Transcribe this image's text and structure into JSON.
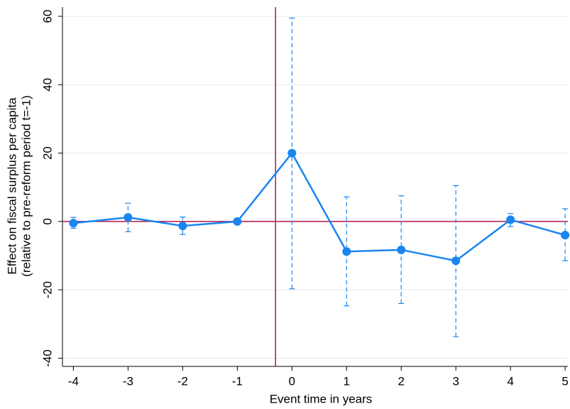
{
  "chart_data": {
    "type": "event-study",
    "y_label": [
      "Effect on fiscal surplus per capita",
      "(relative to pre-reform period t=-1)"
    ],
    "x_label": "Event time in years",
    "x": [
      -4,
      -3,
      -2,
      -1,
      0,
      1,
      2,
      3,
      4,
      5
    ],
    "values": [
      -0.5,
      1.2,
      -1.3,
      0,
      20,
      -8.8,
      -8.3,
      -11.5,
      0.5,
      -4
    ],
    "ci_lower": [
      -2,
      -3,
      -3.8,
      null,
      -19.7,
      -24.7,
      -24,
      -33.7,
      -1.5,
      -11.5
    ],
    "ci_upper": [
      1.2,
      5.3,
      1.3,
      null,
      59.5,
      7.2,
      7.5,
      10.5,
      2.3,
      3.7
    ],
    "color": "#1a85f0",
    "reference_color": "#b0174a",
    "vline_x": -0.3,
    "hline_y": 0,
    "xlim": [
      -4.2,
      5.05
    ],
    "ylim": [
      -42.4,
      62.7
    ],
    "xticks": [
      -4,
      -3,
      -2,
      -1,
      0,
      1,
      2,
      3,
      4,
      5
    ],
    "yticks": [
      -40,
      -20,
      0,
      20,
      40,
      60
    ],
    "grid": true
  }
}
